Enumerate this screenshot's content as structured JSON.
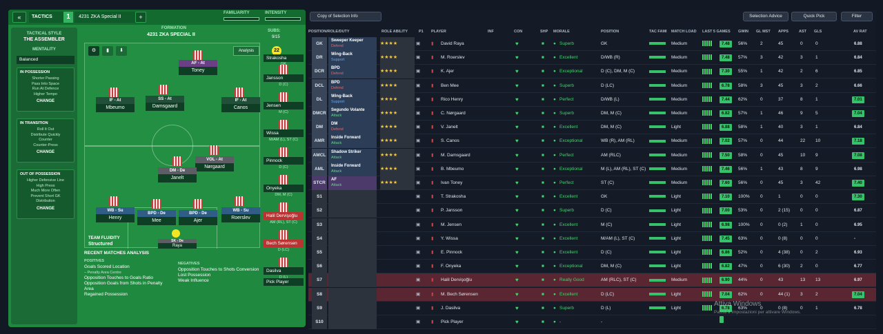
{
  "topbar": {
    "tactics_label": "TACTICS",
    "tactic_number": "1",
    "tactic_name": "4231 ZKA Special II",
    "familiarity_label": "FAMILIARITY",
    "intensity_label": "INTENSITY"
  },
  "style": {
    "heading": "TACTICAL STYLE",
    "name": "THE ASSEMBLER",
    "mentality_label": "MENTALITY",
    "mentality": "Balanced",
    "in_possession": {
      "title": "IN POSSESSION",
      "lines": [
        "Shorter Passing",
        "Pass Into Space",
        "Run At Defence",
        "Higher Tempo"
      ]
    },
    "in_transition": {
      "title": "IN TRANSITION",
      "lines": [
        "Roll It Out",
        "Distribute Quickly",
        "Counter",
        "Counter-Press"
      ]
    },
    "out_of_possession": {
      "title": "OUT OF POSSESSION",
      "lines": [
        "Higher Defensive Line",
        "High Press",
        "Much More Often",
        "Prevent Short GK",
        "Distribution"
      ]
    },
    "change_label": "CHANGE"
  },
  "formation": {
    "label": "FORMATION",
    "name": "4231 ZKA SPECIAL II",
    "subs_label": "SUBS:",
    "subs_count": "9/15",
    "analysis_label": "Analysis"
  },
  "pitch_players": [
    {
      "role": "AF - At",
      "name": "Toney"
    },
    {
      "role": "IF - At",
      "name": "Mbeumo"
    },
    {
      "role": "SS - At",
      "name": "Damsgaard"
    },
    {
      "role": "IF - At",
      "name": "Canos"
    },
    {
      "role": "VOL - At",
      "name": "Nørgaard"
    },
    {
      "role": "DM - De",
      "name": "Janelt"
    },
    {
      "role": "WB - Su",
      "name": "Henry"
    },
    {
      "role": "BPD - De",
      "name": "Mee"
    },
    {
      "role": "BPD - De",
      "name": "Ajer"
    },
    {
      "role": "WB - Su",
      "name": "Roerslev"
    },
    {
      "role": "SK - De",
      "name": "Raya"
    }
  ],
  "fluidity": {
    "label": "TEAM FLUIDITY",
    "value": "Structured"
  },
  "subs": [
    {
      "name": "Strakosha",
      "pos": "GK"
    },
    {
      "name": "Jansson",
      "pos": "D (C)"
    },
    {
      "name": "Jensen",
      "pos": "M (C)"
    },
    {
      "name": "Wissa",
      "pos": "M/AM (L), ST (C)"
    },
    {
      "name": "Pinnock",
      "pos": "D (C)"
    },
    {
      "name": "Onyeka",
      "pos": "DM, M (C)"
    },
    {
      "name": "Halil Dervişoğlu",
      "pos": "AM (RL), ST (C)"
    },
    {
      "name": "Bech Sørensen",
      "pos": "D (LC)"
    },
    {
      "name": "Dasilva",
      "pos": "D (L)"
    },
    {
      "name": "Pick Player",
      "pos": ""
    }
  ],
  "analysis": {
    "title": "RECENT MATCHES ANALYSIS",
    "positives_label": "POSITIVES",
    "positives": [
      "Goals Scored Location",
      "– Penalty Area Centre",
      "Opposition Touches to Goals Ratio",
      "Opposition Goals from Shots in Penalty Area",
      "Regained Possession"
    ],
    "negatives_label": "NEGATIVES",
    "negatives": [
      "Opposition Touches to Shots Conversion",
      "Lost Possession",
      "Weak Influence"
    ]
  },
  "toolbar": {
    "copy": "Copy of Selection Info",
    "selection_advice": "Selection Advice",
    "quick_pick": "Quick Pick",
    "filter": "Filter"
  },
  "columns": [
    "POSITION/ROLE/DUTY",
    "ROLE ABILITY",
    "P1",
    "PLAYER",
    "INF",
    "CON",
    "SHP",
    "MORALE",
    "POSITION",
    "TAC FAMI",
    "MATCH LOAD",
    "LAST 5 GAMES",
    "GWIN",
    "GL MST",
    "APPS",
    "AST",
    "GLS",
    "AV RAT"
  ],
  "rows": [
    {
      "pos": "GK",
      "role": "Sweeper Keeper",
      "duty": "Defend",
      "name": "David Raya",
      "morale": "Superb",
      "position": "GK",
      "load": "Medium",
      "rt": "7.48",
      "gwin": "56%",
      "glmst": "2",
      "apps": "45",
      "ast": "0",
      "gls": "0",
      "avrat": "6.88"
    },
    {
      "pos": "DR",
      "role": "Wing-Back",
      "duty": "Support",
      "name": "M. Roerslev",
      "morale": "Excellent",
      "position": "D/WB (R)",
      "load": "Medium",
      "rt": "7.48",
      "gwin": "57%",
      "glmst": "3",
      "apps": "42",
      "ast": "3",
      "gls": "1",
      "avrat": "6.84"
    },
    {
      "pos": "DCR",
      "role": "BPD",
      "duty": "Defend",
      "name": "K. Ajer",
      "morale": "Exceptional",
      "position": "D (C), DM, M (C)",
      "load": "Medium",
      "rt": "7.30",
      "gwin": "55%",
      "glmst": "1",
      "apps": "42",
      "ast": "2",
      "gls": "6",
      "avrat": "6.85"
    },
    {
      "pos": "DCL",
      "role": "BPD",
      "duty": "Defend",
      "name": "Ben Mee",
      "morale": "Superb",
      "position": "D (LC)",
      "load": "Medium",
      "rt": "6.78",
      "gwin": "58%",
      "glmst": "3",
      "apps": "45",
      "ast": "3",
      "gls": "2",
      "avrat": "6.66"
    },
    {
      "pos": "DL",
      "role": "Wing-Back",
      "duty": "Support",
      "name": "Rico Henry",
      "morale": "Perfect",
      "position": "D/WB (L)",
      "load": "Medium",
      "rt": "7.44",
      "gwin": "62%",
      "glmst": "0",
      "apps": "37",
      "ast": "8",
      "gls": "1",
      "avrat": "7.01"
    },
    {
      "pos": "DMCR",
      "role": "Segundo Volante",
      "duty": "Attack",
      "name": "C. Nørgaard",
      "morale": "Superb",
      "position": "DM, M (C)",
      "load": "Medium",
      "rt": "6.82",
      "gwin": "57%",
      "glmst": "1",
      "apps": "46",
      "ast": "9",
      "gls": "5",
      "avrat": "7.04"
    },
    {
      "pos": "DM",
      "role": "DM",
      "duty": "Defend",
      "name": "V. Janelt",
      "morale": "Excellent",
      "position": "DM, M (C)",
      "load": "Light",
      "rt": "6.88",
      "gwin": "58%",
      "glmst": "1",
      "apps": "40",
      "ast": "3",
      "gls": "1",
      "avrat": "6.84"
    },
    {
      "pos": "AMR",
      "role": "Inside Forward",
      "duty": "Attack",
      "name": "S. Canos",
      "morale": "Exceptional",
      "position": "WB (R), AM (RL)",
      "load": "Medium",
      "rt": "7.02",
      "gwin": "57%",
      "glmst": "0",
      "apps": "44",
      "ast": "22",
      "gls": "10",
      "avrat": "7.18"
    },
    {
      "pos": "AMCL",
      "role": "Shadow Striker",
      "duty": "Attack",
      "name": "M. Damsgaard",
      "morale": "Perfect",
      "position": "AM (RLC)",
      "load": "Medium",
      "rt": "7.50",
      "gwin": "58%",
      "glmst": "0",
      "apps": "45",
      "ast": "10",
      "gls": "9",
      "avrat": "7.08"
    },
    {
      "pos": "AML",
      "role": "Inside Forward",
      "duty": "Attack",
      "name": "B. Mbeumo",
      "morale": "Exceptional",
      "position": "M (L), AM (RL), ST (C)",
      "load": "Medium",
      "rt": "7.46",
      "gwin": "56%",
      "glmst": "1",
      "apps": "43",
      "ast": "8",
      "gls": "9",
      "avrat": "6.98"
    },
    {
      "pos": "STCR",
      "role": "AF",
      "duty": "Attack",
      "name": "Ivan Toney",
      "morale": "Perfect",
      "position": "ST (C)",
      "load": "Medium",
      "rt": "7.60",
      "gwin": "56%",
      "glmst": "0",
      "apps": "45",
      "ast": "3",
      "gls": "42",
      "avrat": "7.40"
    },
    {
      "pos": "S1",
      "role": "",
      "duty": "",
      "name": "T. Strakosha",
      "morale": "Excellent",
      "position": "GK",
      "load": "Light",
      "rt": "7.10",
      "gwin": "100%",
      "glmst": "0",
      "apps": "1",
      "ast": "0",
      "gls": "0",
      "avrat": "7.30"
    },
    {
      "pos": "S2",
      "role": "",
      "duty": "",
      "name": "P. Jansson",
      "morale": "Superb",
      "position": "D (C)",
      "load": "Light",
      "rt": "7.00",
      "gwin": "53%",
      "glmst": "0",
      "apps": "2 (15)",
      "ast": "0",
      "gls": "0",
      "avrat": "6.87"
    },
    {
      "pos": "S3",
      "role": "",
      "duty": "",
      "name": "M. Jensen",
      "morale": "Excellent",
      "position": "M (C)",
      "load": "Light",
      "rt": "6.98",
      "gwin": "100%",
      "glmst": "0",
      "apps": "0 (2)",
      "ast": "1",
      "gls": "0",
      "avrat": "6.95"
    },
    {
      "pos": "S4",
      "role": "",
      "duty": "",
      "name": "Y. Wissa",
      "morale": "Excellent",
      "position": "M/AM (L), ST (C)",
      "load": "Light",
      "rt": "7.45",
      "gwin": "63%",
      "glmst": "0",
      "apps": "0 (8)",
      "ast": "0",
      "gls": "0",
      "avrat": "-"
    },
    {
      "pos": "S5",
      "role": "",
      "duty": "",
      "name": "E. Pinnock",
      "morale": "Excellent",
      "position": "D (C)",
      "load": "Light",
      "rt": "6.86",
      "gwin": "52%",
      "glmst": "0",
      "apps": "4 (38)",
      "ast": "0",
      "gls": "2",
      "avrat": "6.93"
    },
    {
      "pos": "S6",
      "role": "",
      "duty": "",
      "name": "F. Onyeka",
      "morale": "Exceptional",
      "position": "DM, M (C)",
      "load": "Light",
      "rt": "6.82",
      "gwin": "47%",
      "glmst": "0",
      "apps": "6 (30)",
      "ast": "2",
      "gls": "0",
      "avrat": "6.77"
    },
    {
      "pos": "S7",
      "role": "",
      "duty": "",
      "name": "Halil Dervişoğlu",
      "morale": "Really Good",
      "position": "AM (RLC), ST (C)",
      "load": "Medium",
      "rt": "6.90",
      "gwin": "44%",
      "glmst": "0",
      "apps": "43",
      "ast": "13",
      "gls": "13",
      "avrat": "6.97"
    },
    {
      "pos": "S8",
      "role": "",
      "duty": "",
      "name": "M. Bech Sørensen",
      "morale": "Excellent",
      "position": "D (LC)",
      "load": "Light",
      "rt": "7.04",
      "gwin": "62%",
      "glmst": "0",
      "apps": "44 (1)",
      "ast": "3",
      "gls": "2",
      "avrat": "7.04"
    },
    {
      "pos": "S9",
      "role": "",
      "duty": "",
      "name": "J. Dasilva",
      "morale": "Superb",
      "position": "D (L)",
      "load": "Light",
      "rt": "6.78",
      "gwin": "63%",
      "glmst": "0",
      "apps": "0 (8)",
      "ast": "0",
      "gls": "1",
      "avrat": "6.78"
    },
    {
      "pos": "S10",
      "role": "",
      "duty": "",
      "name": "Pick Player",
      "morale": "-",
      "position": "-",
      "load": "",
      "rt": "",
      "gwin": "",
      "glmst": "",
      "apps": "",
      "ast": "",
      "gls": "",
      "avrat": ""
    }
  ],
  "watermark": {
    "title": "Attiva Windows",
    "subtitle": "Passa a Impostazioni per attivare Windows."
  }
}
